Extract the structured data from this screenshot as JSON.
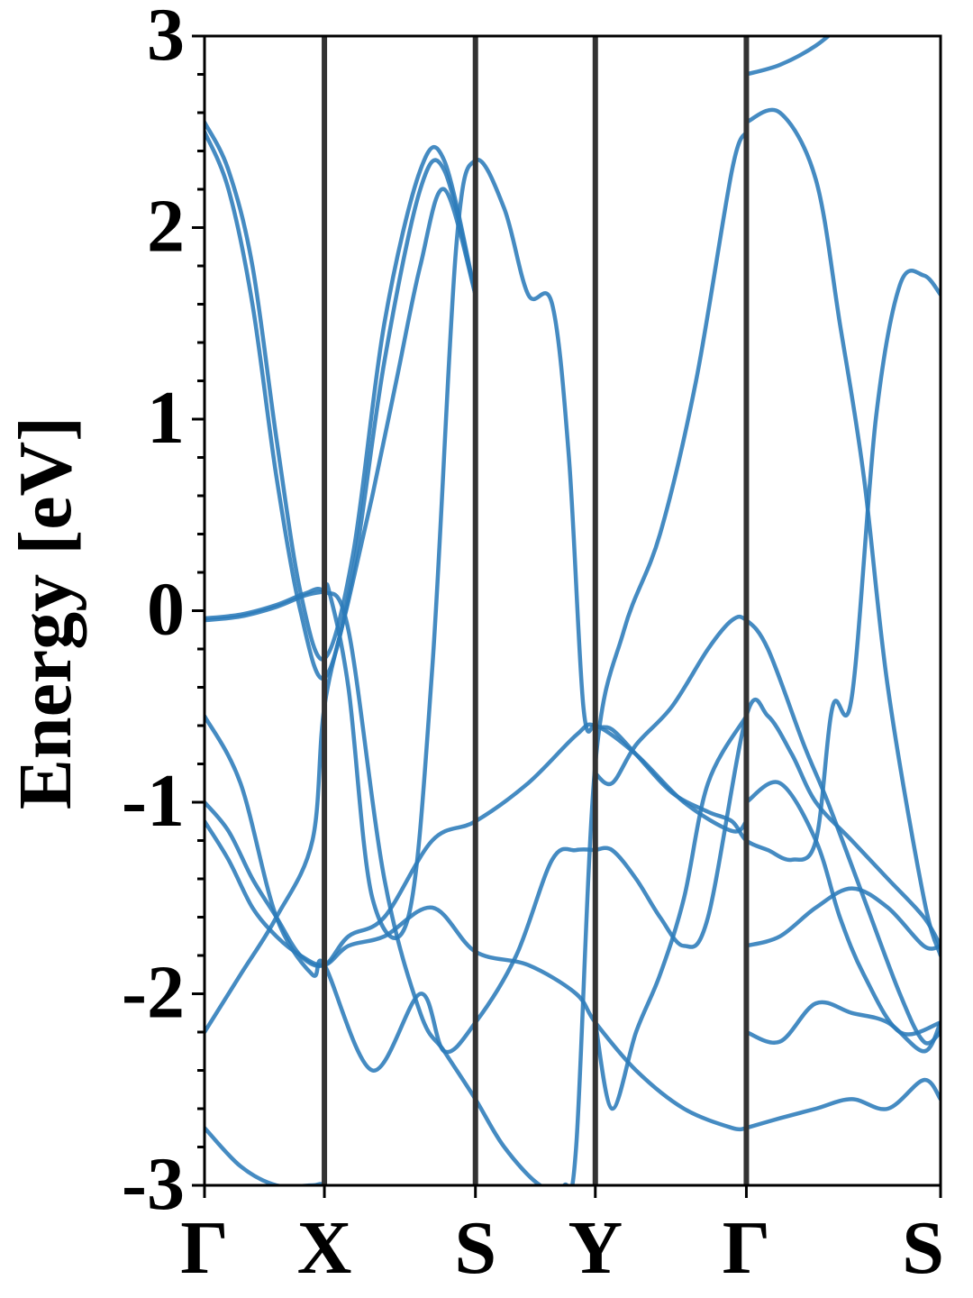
{
  "chart_data": {
    "type": "line",
    "title": "",
    "ylabel": "Energy [eV]",
    "xlabel": "",
    "ylim": [
      -3,
      3
    ],
    "yticks": [
      -3,
      -2,
      -1,
      0,
      1,
      2,
      3
    ],
    "ytick_labels": [
      "-3",
      "-2",
      "-1",
      "0",
      "1",
      "2",
      "3"
    ],
    "minor_ytick_step": 0.2,
    "kpath": {
      "labels": [
        "Γ",
        "X",
        "S",
        "Y",
        "Γ",
        "S"
      ],
      "positions": [
        0,
        0.5,
        1.13,
        1.63,
        2.26,
        3.07
      ]
    },
    "colors": {
      "band": "#2b7bba",
      "kline": "#333333",
      "axis": "#000000"
    },
    "series": [
      {
        "x": [
          0,
          0.15,
          0.3,
          0.42,
          0.5,
          0.6,
          0.75,
          0.9,
          1.0,
          1.13,
          1.25,
          1.4,
          1.5,
          1.55,
          1.63,
          1.75,
          1.9,
          2.05,
          2.2,
          2.26
        ],
        "y": [
          -0.04,
          -0.02,
          0.03,
          0.09,
          0.1,
          -0.1,
          -1.4,
          -2.1,
          -2.3,
          -2.55,
          -2.8,
          -3.0,
          -3.0,
          -2.8,
          -0.8,
          -0.1,
          0.4,
          1.2,
          2.3,
          2.5
        ]
      },
      {
        "x": [
          0,
          0.15,
          0.3,
          0.42,
          0.5,
          0.52,
          0.6,
          0.7,
          0.85,
          0.95,
          1.05,
          1.13,
          1.25,
          1.35,
          1.45,
          1.52,
          1.58,
          1.63,
          1.7,
          1.8,
          1.95,
          2.1,
          2.2,
          2.26,
          2.35,
          2.45,
          2.55,
          2.62,
          2.7,
          2.8,
          2.9,
          3.0,
          3.07
        ],
        "y": [
          -0.05,
          -0.03,
          0.02,
          0.08,
          0.1,
          0.1,
          -0.4,
          -1.5,
          -1.6,
          -0.3,
          1.9,
          2.35,
          2.1,
          1.65,
          1.6,
          0.8,
          -0.5,
          -0.6,
          -0.62,
          -0.75,
          -0.95,
          -1.05,
          -1.1,
          -1.2,
          -1.25,
          -1.3,
          -1.2,
          -0.5,
          -0.45,
          1.0,
          1.7,
          1.75,
          1.65
        ]
      },
      {
        "x": [
          0,
          0.1,
          0.2,
          0.3,
          0.4,
          0.5,
          0.62,
          0.75,
          0.9,
          1.0,
          1.13
        ],
        "y": [
          2.55,
          2.3,
          1.8,
          0.9,
          0.1,
          -0.25,
          0.3,
          1.5,
          2.3,
          2.35,
          1.65
        ]
      },
      {
        "x": [
          0,
          0.1,
          0.2,
          0.3,
          0.4,
          0.5,
          0.62,
          0.75,
          0.9,
          1.0,
          1.13
        ],
        "y": [
          2.5,
          2.2,
          1.6,
          0.7,
          0.0,
          -0.35,
          0.2,
          1.3,
          2.2,
          2.3,
          1.65
        ]
      },
      {
        "x": [
          0,
          0.15,
          0.3,
          0.45,
          0.5,
          0.7,
          0.9,
          1.0,
          1.13,
          1.3,
          1.45,
          1.55,
          1.63
        ],
        "y": [
          -0.55,
          -0.9,
          -1.6,
          -1.9,
          -1.85,
          -2.4,
          -2.0,
          -2.3,
          -2.15,
          -1.8,
          -1.3,
          -1.25,
          -1.25
        ]
      },
      {
        "x": [
          0,
          0.1,
          0.2,
          0.3,
          0.4,
          0.5,
          0.6,
          0.75,
          0.95,
          1.13,
          1.35,
          1.55,
          1.63,
          1.8,
          2.0,
          2.2,
          2.26
        ],
        "y": [
          -1.0,
          -1.15,
          -1.4,
          -1.6,
          -1.8,
          -1.85,
          -1.7,
          -1.6,
          -1.2,
          -1.1,
          -0.9,
          -0.65,
          -0.6,
          -0.75,
          -1.0,
          -1.15,
          -1.1
        ]
      },
      {
        "x": [
          0,
          0.1,
          0.2,
          0.3,
          0.4,
          0.5,
          0.6,
          0.75,
          0.95,
          1.13,
          1.35,
          1.55,
          1.63,
          1.8,
          2.0,
          2.2,
          2.26
        ],
        "y": [
          -1.1,
          -1.3,
          -1.55,
          -1.7,
          -1.8,
          -1.85,
          -1.75,
          -1.7,
          -1.55,
          -1.78,
          -1.85,
          -2.0,
          -2.15,
          -2.4,
          -2.6,
          -2.7,
          -2.7
        ]
      },
      {
        "x": [
          0,
          0.15,
          0.3,
          0.45,
          0.5,
          0.6,
          0.7,
          0.8,
          0.9,
          1.0,
          1.13
        ],
        "y": [
          -2.2,
          -1.9,
          -1.6,
          -1.2,
          -0.5,
          0.05,
          0.6,
          1.2,
          1.8,
          2.2,
          1.65
        ]
      },
      {
        "x": [
          0,
          0.15,
          0.3,
          0.45,
          0.5,
          0.6,
          0.75
        ],
        "y": [
          -2.7,
          -2.9,
          -3.0,
          -3.0,
          -3.0,
          -3.1,
          -3.3
        ]
      },
      {
        "x": [
          2.26,
          2.4,
          2.55,
          2.65,
          2.75,
          2.85,
          3.0,
          3.07
        ],
        "y": [
          2.55,
          2.6,
          2.25,
          1.5,
          0.7,
          -0.4,
          -1.5,
          -1.8
        ]
      },
      {
        "x": [
          2.26,
          2.4,
          2.55,
          2.65,
          2.75,
          2.9,
          3.07
        ],
        "y": [
          -1.0,
          -0.9,
          -1.2,
          -1.6,
          -1.9,
          -2.2,
          -2.15
        ]
      },
      {
        "x": [
          2.26,
          2.4,
          2.55,
          2.7,
          2.85,
          3.0,
          3.07
        ],
        "y": [
          -1.75,
          -1.7,
          -1.55,
          -1.45,
          -1.55,
          -1.75,
          -1.75
        ]
      },
      {
        "x": [
          2.26,
          2.4,
          2.55,
          2.7,
          2.85,
          3.0,
          3.07
        ],
        "y": [
          -2.2,
          -2.25,
          -2.05,
          -2.1,
          -2.15,
          -2.3,
          -2.15
        ]
      },
      {
        "x": [
          2.26,
          2.4,
          2.55,
          2.7,
          2.85,
          3.0,
          3.07
        ],
        "y": [
          -2.7,
          -2.65,
          -2.6,
          -2.55,
          -2.6,
          -2.45,
          -2.55
        ]
      },
      {
        "x": [
          2.26,
          2.4,
          2.55,
          2.7,
          2.85,
          3.0,
          3.07
        ],
        "y": [
          2.8,
          2.85,
          2.95,
          3.1,
          3.2,
          3.3,
          3.4
        ]
      },
      {
        "x": [
          1.63,
          1.7,
          1.8,
          1.95,
          2.1,
          2.2,
          2.26,
          2.35,
          2.5,
          2.6,
          2.75,
          2.9,
          3.0,
          3.07
        ],
        "y": [
          -0.85,
          -0.9,
          -0.7,
          -0.5,
          -0.2,
          -0.05,
          -0.05,
          -0.2,
          -0.7,
          -1.0,
          -1.5,
          -2.0,
          -2.25,
          -2.2
        ]
      },
      {
        "x": [
          1.63,
          1.7,
          1.8,
          1.9,
          2.0,
          2.1,
          2.26
        ],
        "y": [
          -2.15,
          -2.6,
          -2.2,
          -1.9,
          -1.5,
          -0.9,
          -0.55
        ]
      },
      {
        "x": [
          1.63,
          1.7,
          1.8,
          1.9,
          2.0,
          2.1,
          2.26,
          2.35,
          2.45,
          2.55,
          2.7,
          2.85,
          3.0,
          3.07
        ],
        "y": [
          -1.25,
          -1.25,
          -1.4,
          -1.6,
          -1.75,
          -1.6,
          -0.55,
          -0.55,
          -0.75,
          -1.0,
          -1.2,
          -1.4,
          -1.6,
          -1.75
        ]
      }
    ]
  }
}
